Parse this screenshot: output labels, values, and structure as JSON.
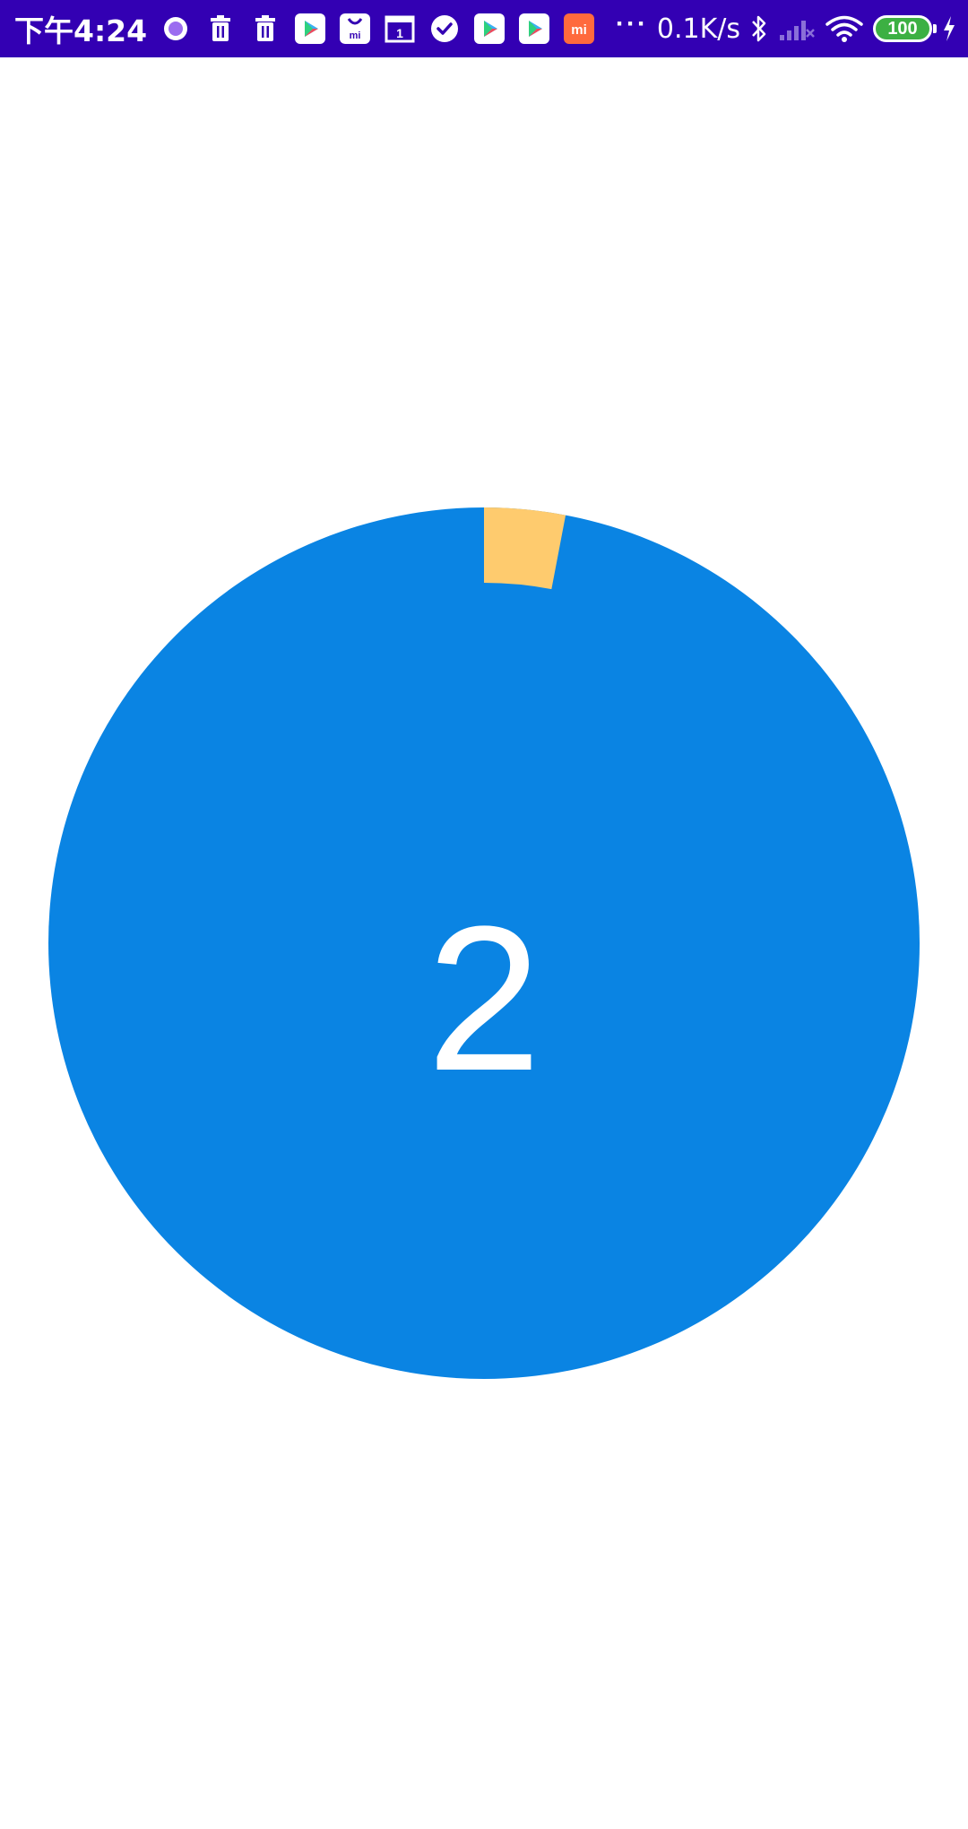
{
  "status_bar": {
    "time": "下午4:24",
    "notification_icons": [
      "record-icon",
      "trash-icon",
      "trash-icon",
      "play-store-icon",
      "mi-store-icon",
      "calendar-icon",
      "check-circle-icon",
      "play-store-icon",
      "play-store-icon",
      "mi-logo-icon"
    ],
    "more_indicator": "···",
    "network_speed": "0.1K/s",
    "bluetooth_icon": "bluetooth-icon",
    "signal_icon": "signal-off-icon",
    "wifi_icon": "wifi-icon",
    "battery_level": "100",
    "charging_icon": "charging-bolt-icon",
    "colors": {
      "background": "#3300b3",
      "battery": "#3cb043"
    }
  },
  "timer": {
    "count": "2",
    "elapsed_fraction": 0.03,
    "colors": {
      "face": "#0a84e3",
      "elapsed": "#fecb6e",
      "text": "#ffffff"
    }
  }
}
